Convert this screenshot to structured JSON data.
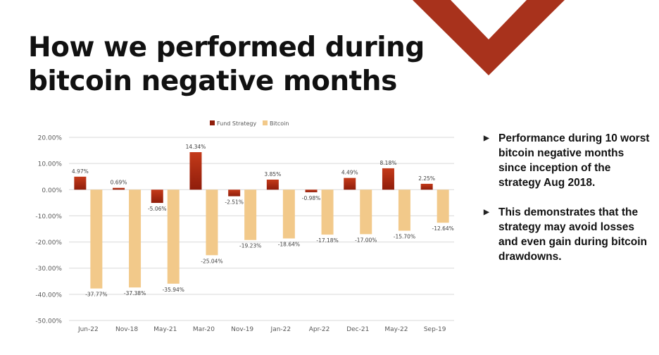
{
  "title_lines": [
    "How we performed during",
    "bitcoin negative months"
  ],
  "bullets": [
    "Performance during 10 worst bitcoin negative months since inception of the strategy Aug 2018.",
    "This demonstrates that the strategy may avoid losses and even gain during bitcoin drawdowns."
  ],
  "bullet_icon": "right-triangle-bullet",
  "colors": {
    "accent": "#A8321C",
    "fund_top": "#C43A1A",
    "fund_bottom": "#8F1D0B",
    "bitcoin": "#F2C98A",
    "gridline": "#D9D9D9",
    "axis_text": "#595959"
  },
  "chart_data": {
    "type": "bar",
    "categories": [
      "Jun-22",
      "Nov-18",
      "May-21",
      "Mar-20",
      "Nov-19",
      "Jan-22",
      "Apr-22",
      "Dec-21",
      "May-22",
      "Sep-19"
    ],
    "series": [
      {
        "name": "Fund Strategy",
        "values": [
          4.97,
          0.69,
          -5.06,
          14.34,
          -2.51,
          3.85,
          -0.98,
          4.49,
          8.18,
          2.25
        ],
        "labels": [
          "4.97%",
          "0.69%",
          "-5.06%",
          "14.34%",
          "-2.51%",
          "3.85%",
          "-0.98%",
          "4.49%",
          "8.18%",
          "2.25%"
        ]
      },
      {
        "name": "Bitcoin",
        "values": [
          -37.77,
          -37.38,
          -35.94,
          -25.04,
          -19.23,
          -18.64,
          -17.18,
          -17.0,
          -15.7,
          -12.64
        ],
        "labels": [
          "-37.77%",
          "-37.38%",
          "-35.94%",
          "-25.04%",
          "-19.23%",
          "-18.64%",
          "-17.18%",
          "-17.00%",
          "-15.70%",
          "-12.64%"
        ]
      }
    ],
    "ylim": [
      -50,
      20
    ],
    "yticks": [
      20,
      10,
      0,
      -10,
      -20,
      -30,
      -40,
      -50
    ],
    "ytick_labels": [
      "20.00%",
      "10.00%",
      "0.00%",
      "-10.00%",
      "-20.00%",
      "-30.00%",
      "-40.00%",
      "-50.00%"
    ],
    "legend_position": "top-center",
    "grid": true
  }
}
